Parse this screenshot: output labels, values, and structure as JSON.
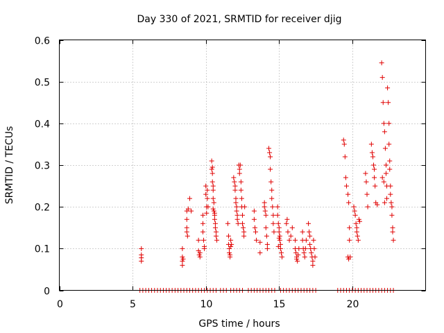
{
  "chart_data": {
    "type": "scatter",
    "title": "Day 330 of 2021, SRMTID for receiver djig",
    "xlabel": "GPS time / hours",
    "ylabel": "SRMTID / TECUs",
    "xlim": [
      0,
      25
    ],
    "ylim": [
      0,
      0.6
    ],
    "xticks": [
      0,
      5,
      10,
      15,
      20
    ],
    "yticks": [
      0,
      0.1,
      0.2,
      0.3,
      0.4,
      0.5,
      0.6
    ],
    "xtick_labels": [
      "0",
      "5",
      "10",
      "15",
      "20"
    ],
    "ytick_labels": [
      "0",
      "0.1",
      "0.2",
      "0.3",
      "0.4",
      "0.5",
      "0.6"
    ],
    "grid": true,
    "marker": "+",
    "series": [
      {
        "name": "SRMTID",
        "color": "#e00000",
        "points": [
          [
            5.6,
            0.1
          ],
          [
            5.6,
            0.085
          ],
          [
            5.6,
            0.07
          ],
          [
            5.6,
            0.078
          ],
          [
            8.4,
            0.1
          ],
          [
            8.4,
            0.08
          ],
          [
            8.4,
            0.07
          ],
          [
            8.4,
            0.06
          ],
          [
            8.45,
            0.075
          ],
          [
            8.7,
            0.19
          ],
          [
            8.7,
            0.17
          ],
          [
            8.7,
            0.15
          ],
          [
            8.7,
            0.14
          ],
          [
            8.75,
            0.13
          ],
          [
            8.8,
            0.195
          ],
          [
            8.9,
            0.22
          ],
          [
            9.0,
            0.19
          ],
          [
            9.5,
            0.12
          ],
          [
            9.5,
            0.095
          ],
          [
            9.55,
            0.085
          ],
          [
            9.6,
            0.08
          ],
          [
            9.6,
            0.09
          ],
          [
            9.8,
            0.18
          ],
          [
            9.8,
            0.16
          ],
          [
            9.8,
            0.14
          ],
          [
            9.85,
            0.12
          ],
          [
            9.9,
            0.105
          ],
          [
            9.9,
            0.1
          ],
          [
            10.0,
            0.25
          ],
          [
            10.0,
            0.23
          ],
          [
            10.05,
            0.2
          ],
          [
            10.05,
            0.185
          ],
          [
            10.1,
            0.24
          ],
          [
            10.1,
            0.22
          ],
          [
            10.15,
            0.2
          ],
          [
            10.4,
            0.31
          ],
          [
            10.4,
            0.29
          ],
          [
            10.45,
            0.28
          ],
          [
            10.45,
            0.26
          ],
          [
            10.5,
            0.25
          ],
          [
            10.5,
            0.24
          ],
          [
            10.5,
            0.22
          ],
          [
            10.55,
            0.21
          ],
          [
            10.55,
            0.19
          ],
          [
            10.6,
            0.18
          ],
          [
            10.6,
            0.17
          ],
          [
            10.65,
            0.16
          ],
          [
            10.65,
            0.15
          ],
          [
            10.7,
            0.14
          ],
          [
            10.7,
            0.13
          ],
          [
            10.75,
            0.12
          ],
          [
            10.45,
            0.295
          ],
          [
            10.6,
            0.185
          ],
          [
            10.5,
            0.195
          ],
          [
            11.5,
            0.16
          ],
          [
            11.55,
            0.13
          ],
          [
            11.55,
            0.11
          ],
          [
            11.6,
            0.1
          ],
          [
            11.6,
            0.09
          ],
          [
            11.65,
            0.085
          ],
          [
            11.65,
            0.08
          ],
          [
            11.7,
            0.12
          ],
          [
            11.7,
            0.105
          ],
          [
            11.75,
            0.11
          ],
          [
            11.9,
            0.27
          ],
          [
            11.95,
            0.26
          ],
          [
            12.0,
            0.25
          ],
          [
            12.0,
            0.24
          ],
          [
            12.05,
            0.22
          ],
          [
            12.05,
            0.21
          ],
          [
            12.1,
            0.2
          ],
          [
            12.1,
            0.19
          ],
          [
            12.15,
            0.18
          ],
          [
            12.15,
            0.17
          ],
          [
            12.2,
            0.16
          ],
          [
            12.25,
            0.3
          ],
          [
            12.3,
            0.29
          ],
          [
            12.3,
            0.28
          ],
          [
            12.35,
            0.3
          ],
          [
            12.4,
            0.26
          ],
          [
            12.4,
            0.24
          ],
          [
            12.45,
            0.22
          ],
          [
            12.45,
            0.2
          ],
          [
            12.5,
            0.18
          ],
          [
            12.5,
            0.16
          ],
          [
            12.55,
            0.15
          ],
          [
            12.6,
            0.14
          ],
          [
            12.6,
            0.13
          ],
          [
            12.65,
            0.2
          ],
          [
            13.3,
            0.19
          ],
          [
            13.3,
            0.17
          ],
          [
            13.35,
            0.15
          ],
          [
            13.4,
            0.14
          ],
          [
            13.45,
            0.12
          ],
          [
            13.7,
            0.09
          ],
          [
            13.7,
            0.115
          ],
          [
            14.0,
            0.21
          ],
          [
            14.0,
            0.2
          ],
          [
            14.05,
            0.19
          ],
          [
            14.1,
            0.18
          ],
          [
            14.1,
            0.15
          ],
          [
            14.15,
            0.13
          ],
          [
            14.2,
            0.11
          ],
          [
            14.2,
            0.1
          ],
          [
            14.3,
            0.34
          ],
          [
            14.35,
            0.33
          ],
          [
            14.4,
            0.32
          ],
          [
            14.4,
            0.29
          ],
          [
            14.45,
            0.26
          ],
          [
            14.5,
            0.24
          ],
          [
            14.5,
            0.22
          ],
          [
            14.55,
            0.2
          ],
          [
            14.6,
            0.18
          ],
          [
            14.6,
            0.16
          ],
          [
            14.65,
            0.14
          ],
          [
            14.9,
            0.2
          ],
          [
            14.9,
            0.18
          ],
          [
            14.95,
            0.16
          ],
          [
            15.0,
            0.15
          ],
          [
            15.0,
            0.14
          ],
          [
            15.05,
            0.13
          ],
          [
            15.05,
            0.12
          ],
          [
            15.1,
            0.11
          ],
          [
            15.1,
            0.1
          ],
          [
            15.15,
            0.09
          ],
          [
            15.2,
            0.08
          ],
          [
            14.95,
            0.105
          ],
          [
            15.0,
            0.125
          ],
          [
            15.5,
            0.16
          ],
          [
            15.55,
            0.17
          ],
          [
            15.6,
            0.14
          ],
          [
            15.7,
            0.12
          ],
          [
            15.8,
            0.13
          ],
          [
            15.9,
            0.15
          ],
          [
            16.1,
            0.12
          ],
          [
            16.1,
            0.1
          ],
          [
            16.15,
            0.09
          ],
          [
            16.2,
            0.08
          ],
          [
            16.2,
            0.075
          ],
          [
            16.25,
            0.07
          ],
          [
            16.3,
            0.085
          ],
          [
            16.35,
            0.1
          ],
          [
            16.6,
            0.14
          ],
          [
            16.6,
            0.12
          ],
          [
            16.65,
            0.1
          ],
          [
            16.7,
            0.09
          ],
          [
            16.75,
            0.08
          ],
          [
            16.8,
            0.1
          ],
          [
            16.85,
            0.12
          ],
          [
            17.0,
            0.16
          ],
          [
            17.05,
            0.14
          ],
          [
            17.1,
            0.13
          ],
          [
            17.1,
            0.11
          ],
          [
            17.15,
            0.1
          ],
          [
            17.2,
            0.09
          ],
          [
            17.25,
            0.08
          ],
          [
            17.3,
            0.07
          ],
          [
            17.3,
            0.06
          ],
          [
            17.35,
            0.12
          ],
          [
            17.4,
            0.1
          ],
          [
            17.45,
            0.08
          ],
          [
            19.4,
            0.36
          ],
          [
            19.45,
            0.35
          ],
          [
            19.5,
            0.32
          ],
          [
            19.55,
            0.27
          ],
          [
            19.6,
            0.25
          ],
          [
            19.7,
            0.23
          ],
          [
            19.75,
            0.21
          ],
          [
            19.8,
            0.15
          ],
          [
            19.8,
            0.12
          ],
          [
            19.7,
            0.08
          ],
          [
            19.75,
            0.075
          ],
          [
            19.85,
            0.08
          ],
          [
            20.1,
            0.2
          ],
          [
            20.15,
            0.19
          ],
          [
            20.2,
            0.18
          ],
          [
            20.25,
            0.16
          ],
          [
            20.3,
            0.15
          ],
          [
            20.3,
            0.14
          ],
          [
            20.35,
            0.13
          ],
          [
            20.4,
            0.12
          ],
          [
            20.45,
            0.17
          ],
          [
            20.5,
            0.165
          ],
          [
            20.9,
            0.28
          ],
          [
            20.95,
            0.26
          ],
          [
            21.0,
            0.23
          ],
          [
            21.05,
            0.2
          ],
          [
            21.3,
            0.35
          ],
          [
            21.35,
            0.33
          ],
          [
            21.4,
            0.32
          ],
          [
            21.45,
            0.3
          ],
          [
            21.5,
            0.29
          ],
          [
            21.5,
            0.27
          ],
          [
            21.55,
            0.25
          ],
          [
            21.6,
            0.21
          ],
          [
            21.7,
            0.205
          ],
          [
            22.0,
            0.545
          ],
          [
            22.05,
            0.51
          ],
          [
            22.1,
            0.45
          ],
          [
            22.15,
            0.4
          ],
          [
            22.2,
            0.38
          ],
          [
            22.25,
            0.34
          ],
          [
            22.3,
            0.3
          ],
          [
            22.3,
            0.28
          ],
          [
            22.35,
            0.25
          ],
          [
            22.35,
            0.22
          ],
          [
            22.4,
            0.485
          ],
          [
            22.45,
            0.45
          ],
          [
            22.5,
            0.4
          ],
          [
            22.5,
            0.35
          ],
          [
            22.55,
            0.31
          ],
          [
            22.55,
            0.29
          ],
          [
            22.6,
            0.25
          ],
          [
            22.6,
            0.23
          ],
          [
            22.65,
            0.21
          ],
          [
            22.7,
            0.2
          ],
          [
            22.7,
            0.18
          ],
          [
            22.75,
            0.15
          ],
          [
            22.75,
            0.14
          ],
          [
            22.8,
            0.12
          ],
          [
            22.05,
            0.27
          ],
          [
            22.15,
            0.26
          ],
          [
            22.2,
            0.21
          ],
          [
            5.5,
            0
          ],
          [
            5.7,
            0
          ],
          [
            5.9,
            0
          ],
          [
            6.1,
            0
          ],
          [
            6.3,
            0
          ],
          [
            6.5,
            0
          ],
          [
            6.7,
            0
          ],
          [
            6.9,
            0
          ],
          [
            7.1,
            0
          ],
          [
            7.3,
            0
          ],
          [
            7.5,
            0
          ],
          [
            7.7,
            0
          ],
          [
            7.9,
            0
          ],
          [
            8.1,
            0
          ],
          [
            8.3,
            0
          ],
          [
            8.5,
            0
          ],
          [
            8.7,
            0
          ],
          [
            8.9,
            0
          ],
          [
            9.1,
            0
          ],
          [
            9.3,
            0
          ],
          [
            9.5,
            0
          ],
          [
            9.7,
            0
          ],
          [
            9.9,
            0
          ],
          [
            10.1,
            0
          ],
          [
            10.3,
            0
          ],
          [
            10.5,
            0
          ],
          [
            10.7,
            0
          ],
          [
            11.0,
            0
          ],
          [
            11.2,
            0
          ],
          [
            11.4,
            0
          ],
          [
            11.7,
            0
          ],
          [
            11.9,
            0
          ],
          [
            12.1,
            0
          ],
          [
            12.3,
            0
          ],
          [
            12.5,
            0
          ],
          [
            12.9,
            0
          ],
          [
            13.1,
            0
          ],
          [
            13.3,
            0
          ],
          [
            13.5,
            0
          ],
          [
            13.7,
            0
          ],
          [
            13.9,
            0
          ],
          [
            14.1,
            0
          ],
          [
            14.3,
            0
          ],
          [
            14.5,
            0
          ],
          [
            14.7,
            0
          ],
          [
            15.1,
            0
          ],
          [
            15.3,
            0
          ],
          [
            15.5,
            0
          ],
          [
            15.7,
            0
          ],
          [
            15.9,
            0
          ],
          [
            16.1,
            0
          ],
          [
            16.3,
            0
          ],
          [
            16.5,
            0
          ],
          [
            16.7,
            0
          ],
          [
            16.9,
            0
          ],
          [
            17.1,
            0
          ],
          [
            17.3,
            0
          ],
          [
            17.5,
            0
          ],
          [
            19.0,
            0
          ],
          [
            19.2,
            0
          ],
          [
            19.4,
            0
          ],
          [
            19.6,
            0
          ],
          [
            19.8,
            0
          ],
          [
            20.0,
            0
          ],
          [
            20.2,
            0
          ],
          [
            20.4,
            0
          ],
          [
            20.6,
            0
          ],
          [
            20.8,
            0
          ],
          [
            21.0,
            0
          ],
          [
            21.2,
            0
          ],
          [
            21.4,
            0
          ],
          [
            21.6,
            0
          ],
          [
            21.8,
            0
          ],
          [
            22.0,
            0
          ],
          [
            22.2,
            0
          ],
          [
            22.4,
            0
          ],
          [
            22.6,
            0
          ],
          [
            22.8,
            0
          ]
        ]
      }
    ]
  }
}
